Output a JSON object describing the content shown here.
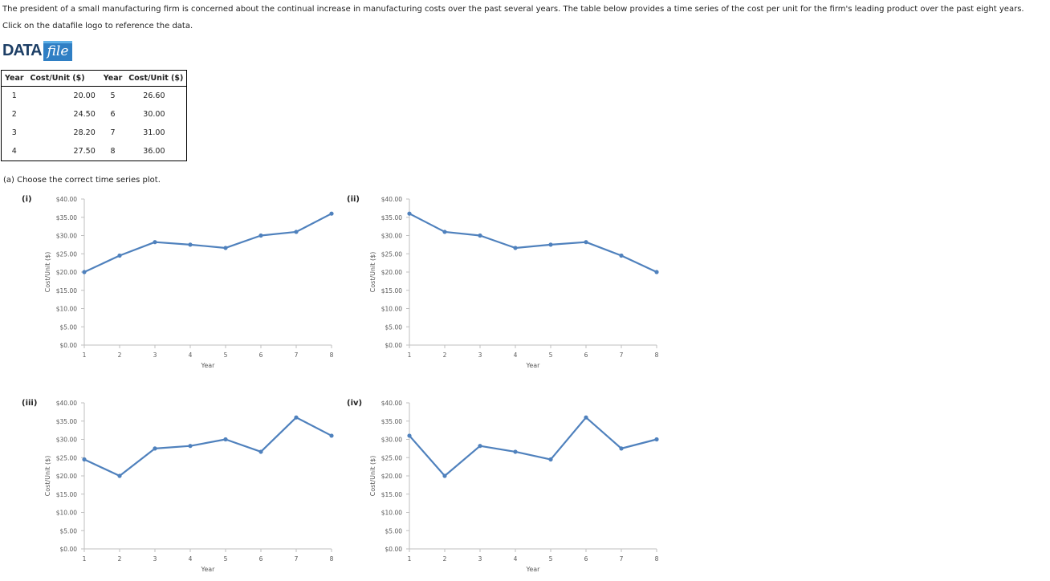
{
  "intro": "The president of a small manufacturing firm is concerned about the continual increase in manufacturing costs over the past several years. The table below provides a time series of the cost per unit for the firm's leading product over the past eight years.",
  "instruction": "Click on the datafile logo to reference the data.",
  "logo": {
    "data": "DATA",
    "file": "file"
  },
  "table": {
    "headers": [
      "Year",
      "Cost/Unit ($)",
      "Year",
      "Cost/Unit ($)"
    ],
    "rows": [
      [
        "1",
        "20.00",
        "5",
        "26.60"
      ],
      [
        "2",
        "24.50",
        "6",
        "30.00"
      ],
      [
        "3",
        "28.20",
        "7",
        "31.00"
      ],
      [
        "4",
        "27.50",
        "8",
        "36.00"
      ]
    ]
  },
  "question": "(a) Choose the correct time series plot.",
  "colors": {
    "line": "#4f81bd",
    "axis": "#bfbfbf",
    "text": "#595959"
  },
  "chart_data": [
    {
      "label": "(i)",
      "type": "line",
      "x": [
        1,
        2,
        3,
        4,
        5,
        6,
        7,
        8
      ],
      "y": [
        20.0,
        24.5,
        28.2,
        27.5,
        26.6,
        30.0,
        31.0,
        36.0
      ],
      "xlabel": "Year",
      "ylabel": "Cost/Unit ($)",
      "ylim": [
        0,
        40
      ],
      "yticks": [
        "$0.00",
        "$5.00",
        "$10.00",
        "$15.00",
        "$20.00",
        "$25.00",
        "$30.00",
        "$35.00",
        "$40.00"
      ],
      "grid": false
    },
    {
      "label": "(ii)",
      "type": "line",
      "x": [
        1,
        2,
        3,
        4,
        5,
        6,
        7,
        8
      ],
      "y": [
        36.0,
        31.0,
        30.0,
        26.6,
        27.5,
        28.2,
        24.5,
        20.0
      ],
      "xlabel": "Year",
      "ylabel": "Cost/Unit ($)",
      "ylim": [
        0,
        40
      ],
      "yticks": [
        "$0.00",
        "$5.00",
        "$10.00",
        "$15.00",
        "$20.00",
        "$25.00",
        "$30.00",
        "$35.00",
        "$40.00"
      ],
      "grid": false
    },
    {
      "label": "(iii)",
      "type": "line",
      "x": [
        1,
        2,
        3,
        4,
        5,
        6,
        7,
        8
      ],
      "y": [
        24.5,
        20.0,
        27.5,
        28.2,
        30.0,
        26.6,
        36.0,
        31.0
      ],
      "xlabel": "Year",
      "ylabel": "Cost/Unit ($)",
      "ylim": [
        0,
        40
      ],
      "yticks": [
        "$0.00",
        "$5.00",
        "$10.00",
        "$15.00",
        "$20.00",
        "$25.00",
        "$30.00",
        "$35.00",
        "$40.00"
      ],
      "grid": false
    },
    {
      "label": "(iv)",
      "type": "line",
      "x": [
        1,
        2,
        3,
        4,
        5,
        6,
        7,
        8
      ],
      "y": [
        31.0,
        20.0,
        28.2,
        26.6,
        24.5,
        36.0,
        27.5,
        30.0
      ],
      "xlabel": "Year",
      "ylabel": "Cost/Unit ($)",
      "ylim": [
        0,
        40
      ],
      "yticks": [
        "$0.00",
        "$5.00",
        "$10.00",
        "$15.00",
        "$20.00",
        "$25.00",
        "$30.00",
        "$35.00",
        "$40.00"
      ],
      "grid": false
    }
  ]
}
